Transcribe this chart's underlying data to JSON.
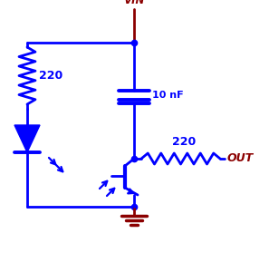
{
  "bg_color": "#ffffff",
  "blue": "#0000ff",
  "dark_red": "#8b0000",
  "line_width": 2.0,
  "vin_label": "VIN",
  "out_label": "OUT",
  "cap_label": "10 nF",
  "res1_label": "220",
  "res2_label": "220",
  "figsize": [
    2.97,
    3.0
  ],
  "dpi": 100
}
